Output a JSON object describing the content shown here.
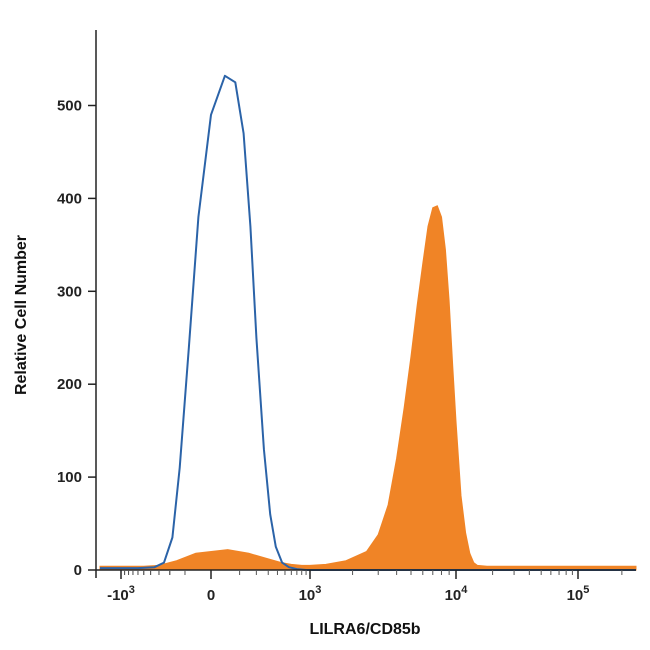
{
  "chart_data": {
    "type": "area",
    "title": "",
    "xlabel": "LILRA6/CD85b",
    "ylabel": "Relative Cell Number",
    "x_scale": "biexponential",
    "xlim": [
      -2000,
      250000
    ],
    "ylim": [
      0,
      580
    ],
    "y_ticks": [
      0,
      100,
      200,
      300,
      400,
      500
    ],
    "y_tick_labels": [
      "0",
      "100",
      "200",
      "300",
      "400",
      "500"
    ],
    "x_ticks": [
      {
        "value": -1000,
        "base": "-10",
        "exp": "3"
      },
      {
        "value": 0,
        "base": "0",
        "exp": ""
      },
      {
        "value": 1000,
        "base": "10",
        "exp": "3"
      },
      {
        "value": 10000,
        "base": "10",
        "exp": "4"
      },
      {
        "value": 100000,
        "base": "10",
        "exp": "5"
      }
    ],
    "grid": false,
    "legend": "none",
    "series": [
      {
        "style": "outline",
        "color": "#2b63a8",
        "x": [
          -1600,
          -1000,
          -600,
          -350,
          -250,
          -180,
          -130,
          -80,
          -40,
          0,
          40,
          80,
          120,
          160,
          200,
          260,
          320,
          380,
          460,
          560,
          700,
          900,
          1200,
          3000,
          10000,
          100000,
          250000
        ],
        "y": [
          2,
          2,
          2,
          3,
          8,
          35,
          110,
          240,
          380,
          490,
          532,
          525,
          470,
          370,
          250,
          130,
          60,
          25,
          8,
          3,
          1,
          0,
          0,
          0,
          0,
          0,
          0
        ]
      },
      {
        "style": "filled",
        "color": "#f08426",
        "x": [
          -1600,
          -1000,
          -500,
          -300,
          -150,
          -50,
          50,
          150,
          300,
          450,
          600,
          800,
          1000,
          1300,
          1800,
          2500,
          3000,
          3500,
          4000,
          4500,
          5000,
          5500,
          6000,
          6500,
          7000,
          7500,
          8000,
          8500,
          9000,
          9500,
          10000,
          11000,
          12000,
          13000,
          14000,
          15000,
          18000,
          30000,
          100000,
          250000
        ],
        "y": [
          4,
          4,
          4,
          5,
          10,
          18,
          22,
          18,
          12,
          8,
          6,
          5,
          5,
          6,
          10,
          20,
          38,
          70,
          120,
          175,
          230,
          285,
          330,
          370,
          390,
          392,
          380,
          345,
          290,
          220,
          160,
          80,
          40,
          18,
          8,
          5,
          4,
          4,
          4,
          4
        ]
      }
    ]
  }
}
